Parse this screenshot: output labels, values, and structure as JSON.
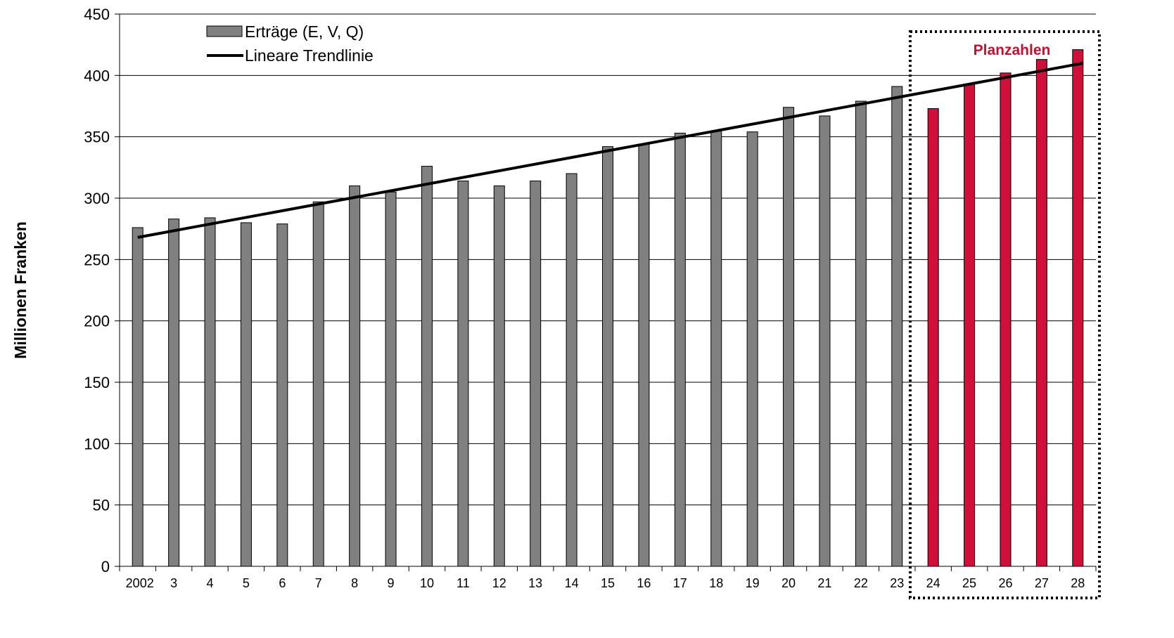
{
  "chart_data": {
    "type": "bar",
    "title": "",
    "xlabel": "",
    "ylabel": "Millionen Franken",
    "ylim": [
      0,
      450
    ],
    "yticks": [
      0,
      50,
      100,
      150,
      200,
      250,
      300,
      350,
      400,
      450
    ],
    "grid": "horizontal",
    "legend_position": "top-left",
    "categories": [
      "2002",
      "3",
      "4",
      "5",
      "6",
      "7",
      "8",
      "9",
      "10",
      "11",
      "12",
      "13",
      "14",
      "15",
      "16",
      "17",
      "18",
      "19",
      "20",
      "21",
      "22",
      "23",
      "24",
      "25",
      "26",
      "27",
      "28"
    ],
    "series": [
      {
        "name": "Erträge (E, V, Q)",
        "type": "bar",
        "values": [
          276,
          283,
          284,
          280,
          279,
          297,
          310,
          305,
          326,
          314,
          310,
          314,
          320,
          342,
          344,
          353,
          355,
          354,
          374,
          367,
          379,
          391,
          373,
          393,
          402,
          413,
          421
        ]
      },
      {
        "name": "Lineare Trendlinie",
        "type": "line",
        "start": 268,
        "end": 410
      }
    ],
    "planned_from_index": 22,
    "annotation": "Planzahlen",
    "colors": {
      "actual": "#808080",
      "planned": "#d0103a",
      "trend": "#000000",
      "annotation": "#c8102e",
      "grid": "#000000"
    }
  }
}
